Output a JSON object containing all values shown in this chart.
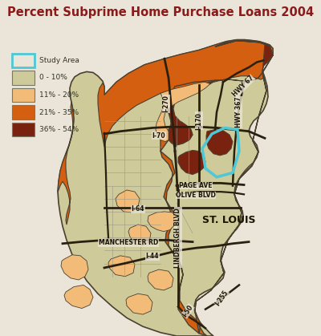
{
  "title": "Percent Subprime Home Purchase Loans 2004",
  "title_color": "#8B1A1A",
  "background_color": "#EAE5D8",
  "legend_items": [
    {
      "label": "Study Area",
      "color": "none",
      "edgecolor": "#4DC8D4",
      "linewidth": 2.0
    },
    {
      "label": "0 - 10%",
      "color": "#CECA9A",
      "edgecolor": "#777766"
    },
    {
      "label": "11% - 20%",
      "color": "#F2BC78",
      "edgecolor": "#777766"
    },
    {
      "label": "21% - 35%",
      "color": "#D45F10",
      "edgecolor": "#777766"
    },
    {
      "label": "36% - 54%",
      "color": "#7A2210",
      "edgecolor": "#777766"
    }
  ],
  "colors": {
    "bg": "#EAE5D8",
    "gray": "#CECA9A",
    "lt_orange": "#F2BC78",
    "orange": "#D45F10",
    "dark_red": "#7A2210",
    "outline": "#4A4030",
    "road": "#2A2010",
    "study_area": "#4DC8D4",
    "gray_line": "#999988"
  }
}
